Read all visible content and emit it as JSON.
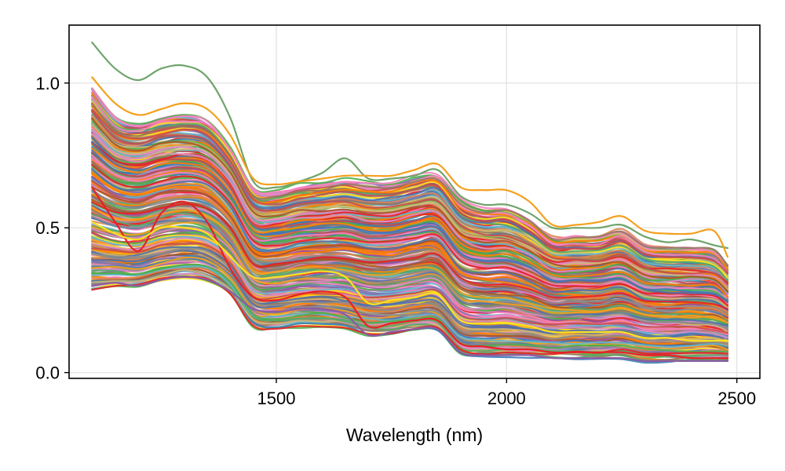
{
  "chart_data": {
    "type": "line",
    "title": "",
    "xlabel": "Wavelength (nm)",
    "ylabel": "",
    "xlim": [
      1050,
      2550
    ],
    "ylim": [
      -0.02,
      1.2
    ],
    "xticks": [
      1500,
      2000,
      2500
    ],
    "xtick_labels": [
      "1500",
      "2000",
      "2500"
    ],
    "yticks": [
      0.0,
      0.5,
      1.0
    ],
    "ytick_labels": [
      "0.0",
      "0.5",
      "1.0"
    ],
    "grid": true,
    "legend": "none",
    "x": [
      1100,
      1150,
      1200,
      1250,
      1300,
      1350,
      1400,
      1450,
      1500,
      1550,
      1600,
      1650,
      1700,
      1750,
      1800,
      1850,
      1900,
      1950,
      2000,
      2050,
      2100,
      2150,
      2200,
      2250,
      2300,
      2350,
      2400,
      2450,
      2480
    ],
    "series_count_approx": 300,
    "highlighted_series": [
      {
        "color": "#6fa46b",
        "values": [
          1.14,
          1.05,
          1.01,
          1.05,
          1.06,
          1.02,
          0.88,
          0.66,
          0.64,
          0.66,
          0.69,
          0.74,
          0.67,
          0.67,
          0.68,
          0.7,
          0.61,
          0.58,
          0.58,
          0.55,
          0.5,
          0.5,
          0.5,
          0.51,
          0.47,
          0.45,
          0.46,
          0.44,
          0.43
        ]
      },
      {
        "color": "#f59f1c",
        "values": [
          1.02,
          0.93,
          0.89,
          0.91,
          0.93,
          0.91,
          0.82,
          0.67,
          0.65,
          0.66,
          0.67,
          0.68,
          0.68,
          0.68,
          0.7,
          0.72,
          0.64,
          0.63,
          0.63,
          0.59,
          0.51,
          0.51,
          0.52,
          0.54,
          0.49,
          0.48,
          0.48,
          0.49,
          0.4
        ]
      },
      {
        "color": "#e82127",
        "values": [
          0.64,
          0.52,
          0.42,
          0.55,
          0.59,
          0.52,
          0.36,
          0.26,
          0.25,
          0.27,
          0.28,
          0.26,
          0.16,
          0.17,
          0.18,
          0.18,
          0.1,
          0.09,
          0.08,
          0.08,
          0.07,
          0.07,
          0.07,
          0.07,
          0.06,
          0.06,
          0.05,
          0.05,
          0.05
        ]
      },
      {
        "color": "#ffe11f",
        "values": [
          0.52,
          0.48,
          0.46,
          0.5,
          0.5,
          0.48,
          0.4,
          0.33,
          0.33,
          0.34,
          0.35,
          0.33,
          0.24,
          0.25,
          0.26,
          0.27,
          0.18,
          0.17,
          0.17,
          0.16,
          0.14,
          0.14,
          0.14,
          0.14,
          0.12,
          0.12,
          0.11,
          0.11,
          0.11
        ]
      },
      {
        "color": "#8e5aa2",
        "values": [
          0.3,
          0.31,
          0.3,
          0.32,
          0.33,
          0.32,
          0.28,
          0.22,
          0.21,
          0.22,
          0.22,
          0.2,
          0.13,
          0.14,
          0.15,
          0.15,
          0.07,
          0.06,
          0.06,
          0.06,
          0.05,
          0.05,
          0.05,
          0.05,
          0.04,
          0.04,
          0.04,
          0.04,
          0.04
        ]
      }
    ],
    "bulk_series_colors": [
      "#4c72b0",
      "#dd8452",
      "#55a868",
      "#c44e52",
      "#8172b3",
      "#937860",
      "#da8bc3",
      "#8c8c8c",
      "#ccb974",
      "#64b5cd",
      "#f59f1c",
      "#e82127",
      "#ffe11f",
      "#a65628",
      "#f781bf",
      "#377eb8",
      "#4daf4a",
      "#984ea3",
      "#ff7f00"
    ],
    "bulk_envelope": {
      "upper": [
        0.98,
        0.88,
        0.86,
        0.88,
        0.89,
        0.87,
        0.78,
        0.64,
        0.63,
        0.65,
        0.66,
        0.67,
        0.66,
        0.66,
        0.68,
        0.69,
        0.6,
        0.57,
        0.57,
        0.53,
        0.47,
        0.47,
        0.47,
        0.49,
        0.44,
        0.43,
        0.43,
        0.42,
        0.37
      ],
      "lower": [
        0.29,
        0.3,
        0.3,
        0.32,
        0.33,
        0.32,
        0.27,
        0.16,
        0.15,
        0.16,
        0.16,
        0.15,
        0.13,
        0.13,
        0.14,
        0.14,
        0.06,
        0.05,
        0.05,
        0.05,
        0.05,
        0.05,
        0.05,
        0.05,
        0.04,
        0.04,
        0.04,
        0.04,
        0.04
      ]
    }
  }
}
